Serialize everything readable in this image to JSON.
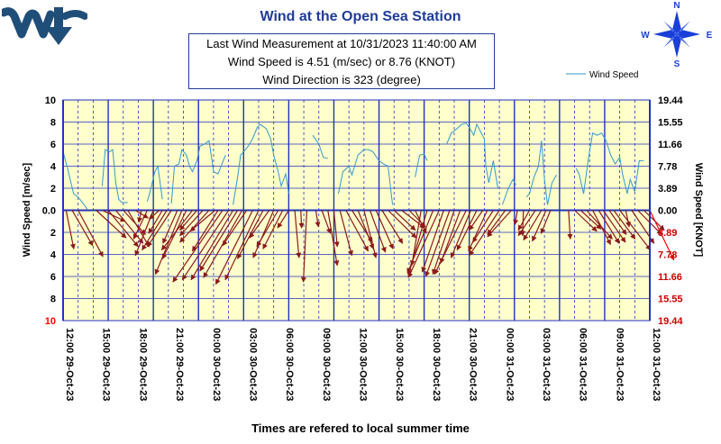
{
  "title": "Wind at the Open Sea Station",
  "info": {
    "line1": "Last Wind Measurement at 10/31/2023  11:40:00  AM",
    "line2": "Wind Speed is 4.51 (m/sec) or 8.76 (KNOT)",
    "line3": "Wind Direction is 323 (degree)"
  },
  "compass": {
    "n": "N",
    "s": "S",
    "e": "E",
    "w": "W"
  },
  "colors": {
    "accent": "#1f3c99",
    "plot_bg": "#ffffcc",
    "grid": "#2233bb",
    "line": "#3399cc",
    "arrow": "#8b1a1a",
    "last_arrow": "#ff0000",
    "right_neg": "#cc0000"
  },
  "chart_data": {
    "type": "line",
    "xlabel": "Times are refered to local summer time",
    "ylabel_left": "Wind Speed [m/sec]",
    "ylabel_right": "Wind Speed [KNOT]",
    "ylim": [
      -10,
      10
    ],
    "grid": true,
    "legend": "top-right",
    "left_ticks": [
      "10",
      "8",
      "6",
      "4",
      "2",
      "0.0",
      "2",
      "4",
      "6",
      "8",
      "10"
    ],
    "right_ticks": [
      "19.44",
      "15.55",
      "11.66",
      "7.78",
      "3.89",
      "0.00",
      "3.89",
      "7.78",
      "11.66",
      "15.55",
      "19.44"
    ],
    "x_ticks": [
      "12:00  29-Oct-23",
      "15:00  29-Oct-23",
      "18:00  29-Oct-23",
      "21:00  29-Oct-23",
      "00:00  30-Oct-23",
      "03:00  30-Oct-23",
      "06:00  30-Oct-23",
      "09:00  30-Oct-23",
      "12:00  30-Oct-23",
      "15:00  30-Oct-23",
      "18:00  30-Oct-23",
      "21:00  30-Oct-23",
      "00:00  31-Oct-23",
      "03:00  31-Oct-23",
      "06:00  31-Oct-23",
      "09:00  31-Oct-23",
      "12:00  31-Oct-23"
    ],
    "series": [
      {
        "name": "Wind Speed",
        "segments": [
          [
            [
              0.0,
              5.3
            ],
            [
              0.3,
              3.8
            ],
            [
              0.7,
              1.5
            ],
            [
              1.0,
              1.2
            ],
            [
              1.4,
              0.5
            ],
            [
              1.6,
              0.1
            ]
          ],
          [
            [
              2.6,
              2.2
            ],
            [
              2.8,
              5.5
            ],
            [
              3.1,
              5.3
            ],
            [
              3.3,
              5.5
            ],
            [
              3.5,
              2.5
            ],
            [
              3.7,
              1.0
            ],
            [
              3.9,
              0.7
            ],
            [
              4.3,
              0.7
            ]
          ],
          [
            [
              5.6,
              0.8
            ],
            [
              5.8,
              1.8
            ],
            [
              6.1,
              3.5
            ],
            [
              6.3,
              4.0
            ],
            [
              6.5,
              2.0
            ],
            [
              6.6,
              1.0
            ]
          ],
          [
            [
              7.2,
              0.6
            ],
            [
              7.4,
              4.0
            ],
            [
              7.7,
              4.2
            ],
            [
              7.9,
              5.5
            ],
            [
              8.2,
              5.0
            ],
            [
              8.4,
              4.0
            ],
            [
              8.6,
              3.5
            ],
            [
              8.9,
              4.5
            ],
            [
              9.1,
              5.8
            ],
            [
              9.4,
              6.0
            ],
            [
              9.7,
              6.3
            ],
            [
              9.9,
              4.5
            ],
            [
              10.0,
              3.5
            ],
            [
              10.3,
              3.3
            ],
            [
              10.5,
              4.0
            ],
            [
              10.8,
              5.0
            ]
          ],
          [
            [
              11.3,
              0.5
            ],
            [
              11.6,
              3.0
            ],
            [
              11.8,
              5.0
            ],
            [
              12.0,
              5.3
            ],
            [
              12.3,
              5.8
            ],
            [
              12.6,
              6.5
            ],
            [
              12.9,
              7.5
            ],
            [
              13.1,
              7.8
            ],
            [
              13.5,
              7.4
            ],
            [
              13.8,
              6.5
            ],
            [
              14.0,
              5.0
            ],
            [
              14.3,
              3.5
            ],
            [
              14.5,
              2.2
            ],
            [
              14.8,
              3.3
            ],
            [
              15.0,
              1.5
            ]
          ],
          [
            [
              16.6,
              6.8
            ],
            [
              17.0,
              6.0
            ],
            [
              17.3,
              4.8
            ],
            [
              17.6,
              4.7
            ]
          ],
          [
            [
              18.3,
              1.5
            ],
            [
              18.6,
              3.5
            ],
            [
              19.0,
              4.0
            ],
            [
              19.2,
              3.2
            ],
            [
              19.6,
              5.0
            ],
            [
              20.0,
              5.5
            ],
            [
              20.3,
              5.5
            ],
            [
              20.6,
              5.3
            ],
            [
              21.0,
              4.5
            ],
            [
              21.3,
              4.2
            ],
            [
              21.6,
              4.0
            ],
            [
              21.9,
              0.5
            ]
          ],
          [
            [
              23.4,
              3.0
            ],
            [
              23.7,
              5.0
            ],
            [
              24.0,
              5.1
            ],
            [
              24.2,
              4.5
            ]
          ],
          [
            [
              25.5,
              6.0
            ],
            [
              25.8,
              7.0
            ],
            [
              26.1,
              7.3
            ],
            [
              26.5,
              7.8
            ],
            [
              26.8,
              7.9
            ],
            [
              27.0,
              7.5
            ],
            [
              27.3,
              6.8
            ],
            [
              27.5,
              7.8
            ],
            [
              27.8,
              7.0
            ],
            [
              28.0,
              6.5
            ],
            [
              28.1,
              4.0
            ],
            [
              28.3,
              2.5
            ],
            [
              28.6,
              4.5
            ],
            [
              28.9,
              2.0
            ]
          ],
          [
            [
              29.2,
              0.5
            ],
            [
              29.6,
              2.0
            ],
            [
              29.9,
              2.8
            ],
            [
              30.1,
              2.3
            ]
          ],
          [
            [
              30.8,
              1.2
            ],
            [
              31.0,
              1.5
            ],
            [
              31.3,
              3.0
            ],
            [
              31.6,
              4.0
            ],
            [
              31.8,
              6.3
            ],
            [
              32.0,
              2.8
            ],
            [
              32.2,
              0.5
            ],
            [
              32.5,
              2.5
            ],
            [
              32.8,
              3.2
            ]
          ],
          [
            [
              34.1,
              3.8
            ],
            [
              34.3,
              3.3
            ],
            [
              34.6,
              1.5
            ],
            [
              34.9,
              4.5
            ],
            [
              35.2,
              7.0
            ],
            [
              35.5,
              6.8
            ],
            [
              35.8,
              7.0
            ],
            [
              36.1,
              6.3
            ],
            [
              36.4,
              5.0
            ],
            [
              36.7,
              4.2
            ],
            [
              37.0,
              4.8
            ],
            [
              37.2,
              3.2
            ],
            [
              37.5,
              1.5
            ],
            [
              37.7,
              2.8
            ],
            [
              38.0,
              1.7
            ],
            [
              38.3,
              4.5
            ],
            [
              38.6,
              4.5
            ]
          ]
        ]
      }
    ],
    "arrows": [
      {
        "t": 0.2,
        "dx": 0.9,
        "dy": -3.5
      },
      {
        "t": 0.6,
        "dx": 2.4,
        "dy": -3.2
      },
      {
        "t": 1.0,
        "dx": 2.9,
        "dy": -4.2
      },
      {
        "t": 2.2,
        "dx": 3.5,
        "dy": -2.5
      },
      {
        "t": 2.6,
        "dx": 2.7,
        "dy": -1.0
      },
      {
        "t": 3.0,
        "dx": 3.5,
        "dy": -3.3
      },
      {
        "t": 3.5,
        "dx": 3.2,
        "dy": -3.0
      },
      {
        "t": 4.0,
        "dx": 2.6,
        "dy": -2.2
      },
      {
        "t": 4.3,
        "dx": 2.5,
        "dy": -3.3
      },
      {
        "t": 4.8,
        "dx": 1.5,
        "dy": -0.7
      },
      {
        "t": 5.2,
        "dx": -0.3,
        "dy": -1.1
      },
      {
        "t": 5.6,
        "dx": -1.6,
        "dy": -2.6
      },
      {
        "t": 6.0,
        "dx": -2.1,
        "dy": -4.1
      },
      {
        "t": 6.4,
        "dx": -1.2,
        "dy": -0.8
      },
      {
        "t": 6.6,
        "dx": -1.6,
        "dy": -2.1
      },
      {
        "t": 6.9,
        "dx": -2.9,
        "dy": -3.6
      },
      {
        "t": 7.2,
        "dx": -2.8,
        "dy": -3.3
      },
      {
        "t": 7.6,
        "dx": -1.7,
        "dy": -3.0
      },
      {
        "t": 7.9,
        "dx": -3.1,
        "dy": -5.8
      },
      {
        "t": 8.2,
        "dx": -2.8,
        "dy": -4.4
      },
      {
        "t": 8.6,
        "dx": -3.6,
        "dy": -3.6
      },
      {
        "t": 8.9,
        "dx": -2.0,
        "dy": -1.8
      },
      {
        "t": 9.3,
        "dx": -2.7,
        "dy": -2.3
      },
      {
        "t": 9.7,
        "dx": -3.4,
        "dy": -2.9
      },
      {
        "t": 10.1,
        "dx": -2.9,
        "dy": -1.9
      },
      {
        "t": 10.3,
        "dx": -3.0,
        "dy": -3.7
      },
      {
        "t": 10.6,
        "dx": -5.8,
        "dy": -6.5
      },
      {
        "t": 11.0,
        "dx": -5.4,
        "dy": -6.3
      },
      {
        "t": 11.3,
        "dx": -4.9,
        "dy": -6.3
      },
      {
        "t": 11.6,
        "dx": -4.4,
        "dy": -5.5
      },
      {
        "t": 11.9,
        "dx": -4.5,
        "dy": -6.1
      },
      {
        "t": 12.2,
        "dx": -2.8,
        "dy": -3.2
      },
      {
        "t": 12.6,
        "dx": -4.3,
        "dy": -6.7
      },
      {
        "t": 13.0,
        "dx": -3.9,
        "dy": -6.3
      },
      {
        "t": 13.3,
        "dx": -3.0,
        "dy": -4.4
      },
      {
        "t": 13.7,
        "dx": -2.3,
        "dy": -2.5
      },
      {
        "t": 14.0,
        "dx": -2.4,
        "dy": -4.3
      },
      {
        "t": 14.3,
        "dx": -2.5,
        "dy": -3.3
      },
      {
        "t": 14.6,
        "dx": -2.3,
        "dy": -3.5
      },
      {
        "t": 15.0,
        "dx": -1.3,
        "dy": -1.6
      },
      {
        "t": 15.4,
        "dx": 0.5,
        "dy": -4.3
      },
      {
        "t": 15.8,
        "dx": 0.1,
        "dy": -1.6
      },
      {
        "t": 16.2,
        "dx": -0.4,
        "dy": -6.5
      },
      {
        "t": 16.8,
        "dx": 0.3,
        "dy": -1.5
      },
      {
        "t": 17.2,
        "dx": 1.0,
        "dy": -2.1
      },
      {
        "t": 17.6,
        "dx": 1.1,
        "dy": -5.0
      },
      {
        "t": 18.0,
        "dx": 0.4,
        "dy": -3.3
      },
      {
        "t": 18.4,
        "dx": 1.4,
        "dy": -4.1
      },
      {
        "t": 18.8,
        "dx": 2.6,
        "dy": -3.7
      },
      {
        "t": 19.2,
        "dx": 2.4,
        "dy": -2.9
      },
      {
        "t": 19.6,
        "dx": 1.8,
        "dy": -3.5
      },
      {
        "t": 20.0,
        "dx": 1.4,
        "dy": -4.3
      },
      {
        "t": 20.4,
        "dx": 1.8,
        "dy": -3.8
      },
      {
        "t": 20.8,
        "dx": 2.0,
        "dy": -3.5
      },
      {
        "t": 21.2,
        "dx": 2.4,
        "dy": -3.0
      },
      {
        "t": 21.6,
        "dx": 3.3,
        "dy": -2.5
      },
      {
        "t": 22.0,
        "dx": 2.5,
        "dy": -1.8
      },
      {
        "t": 22.5,
        "dx": 2.7,
        "dy": -1.6
      },
      {
        "t": 23.0,
        "dx": 1.9,
        "dy": -1.5
      },
      {
        "t": 23.4,
        "dx": 1.3,
        "dy": -2.1
      },
      {
        "t": 23.8,
        "dx": -1.1,
        "dy": -5.0
      },
      {
        "t": 24.2,
        "dx": -2.2,
        "dy": -5.9
      },
      {
        "t": 24.6,
        "dx": -3.0,
        "dy": -5.7
      },
      {
        "t": 25.0,
        "dx": -3.6,
        "dy": -6.1
      },
      {
        "t": 25.3,
        "dx": -2.5,
        "dy": -5.6
      },
      {
        "t": 25.7,
        "dx": -2.8,
        "dy": -6.0
      },
      {
        "t": 26.0,
        "dx": -2.5,
        "dy": -5.8
      },
      {
        "t": 26.4,
        "dx": -2.3,
        "dy": -4.8
      },
      {
        "t": 26.8,
        "dx": -3.7,
        "dy": -5.8
      },
      {
        "t": 27.1,
        "dx": -2.3,
        "dy": -4.3
      },
      {
        "t": 27.5,
        "dx": -2.3,
        "dy": -3.6
      },
      {
        "t": 27.9,
        "dx": -1.6,
        "dy": -1.8
      },
      {
        "t": 28.2,
        "dx": -2.2,
        "dy": -3.7
      },
      {
        "t": 28.6,
        "dx": -2.4,
        "dy": -2.9
      },
      {
        "t": 29.0,
        "dx": -3.5,
        "dy": -4.1
      },
      {
        "t": 29.4,
        "dx": -2.1,
        "dy": -2.2
      },
      {
        "t": 29.8,
        "dx": -2.8,
        "dy": -2.4
      },
      {
        "t": 30.2,
        "dx": -0.3,
        "dy": -1.3
      },
      {
        "t": 30.6,
        "dx": -0.1,
        "dy": -2.3
      },
      {
        "t": 31.0,
        "dx": -1.3,
        "dy": -1.8
      },
      {
        "t": 31.4,
        "dx": -2.0,
        "dy": -2.3
      },
      {
        "t": 31.8,
        "dx": -2.1,
        "dy": -2.7
      },
      {
        "t": 32.1,
        "dx": -1.6,
        "dy": -2.8
      },
      {
        "t": 32.4,
        "dx": -1.1,
        "dy": -2.1
      },
      {
        "t": 33.6,
        "dx": 0.2,
        "dy": -2.6
      },
      {
        "t": 34.0,
        "dx": 2.6,
        "dy": -1.9
      },
      {
        "t": 34.4,
        "dx": 2.4,
        "dy": -1.7
      },
      {
        "t": 34.8,
        "dx": 3.0,
        "dy": -2.6
      },
      {
        "t": 35.2,
        "dx": 2.1,
        "dy": -3.1
      },
      {
        "t": 35.6,
        "dx": 2.4,
        "dy": -3.0
      },
      {
        "t": 35.9,
        "dx": 2.6,
        "dy": -2.9
      },
      {
        "t": 36.3,
        "dx": 2.0,
        "dy": -2.2
      },
      {
        "t": 36.6,
        "dx": 2.5,
        "dy": -2.6
      },
      {
        "t": 37.0,
        "dx": 3.6,
        "dy": -3.6
      },
      {
        "t": 37.4,
        "dx": 0.4,
        "dy": -1.5
      },
      {
        "t": 37.8,
        "dx": 2.6,
        "dy": -3.0
      },
      {
        "t": 38.2,
        "dx": 2.8,
        "dy": -2.2
      },
      {
        "t": 38.6,
        "dx": 2.4,
        "dy": -1.8
      },
      {
        "t": 39.0,
        "dx": 2.8,
        "dy": -4.5
      }
    ]
  }
}
